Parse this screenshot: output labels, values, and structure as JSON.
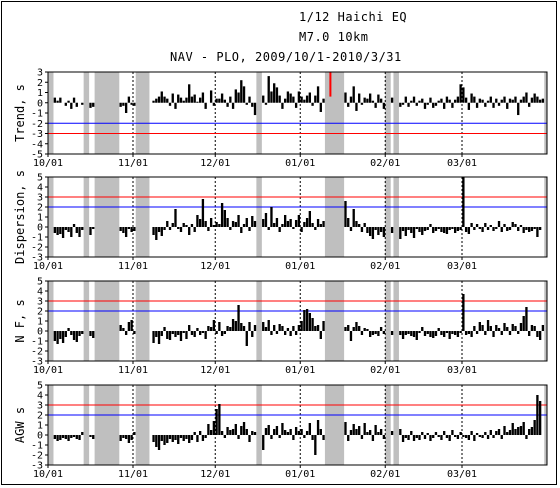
{
  "title_line1": "1/12 Haichi EQ",
  "title_line2": "M7.0 10km",
  "subtitle": "NAV - PLO, 2009/10/1-2010/3/31",
  "colors": {
    "bar": "#000000",
    "missing": "#bfbfbf",
    "red_line": "#ff0000",
    "blue_line": "#0000ff",
    "event": "#ff0000"
  },
  "chart_data": [
    {
      "type": "bar",
      "ylabel": "Trend,  s",
      "ylim": [
        -5,
        3
      ],
      "yticks": [
        3,
        2,
        1,
        0,
        -1,
        -2,
        -3,
        -4,
        -5
      ],
      "thresholds": [
        {
          "value": -3,
          "color": "red"
        },
        {
          "value": -2,
          "color": "blue"
        }
      ],
      "x_range": [
        0,
        182
      ],
      "x_ticks": [
        {
          "day": 0,
          "label": "10/01"
        },
        {
          "day": 31,
          "label": "11/01"
        },
        {
          "day": 61,
          "label": "12/01"
        },
        {
          "day": 92,
          "label": "01/01"
        },
        {
          "day": 123,
          "label": "02/01"
        },
        {
          "day": 151,
          "label": "03/01"
        }
      ],
      "missing_ranges": [
        [
          0,
          2
        ],
        [
          13,
          15
        ],
        [
          17,
          26
        ],
        [
          32,
          37
        ],
        [
          76,
          78
        ],
        [
          101,
          108
        ],
        [
          123,
          125
        ],
        [
          126,
          128
        ],
        [
          181,
          182
        ]
      ],
      "event_day": 103,
      "values": [
        0,
        0,
        0.5,
        0.2,
        0.5,
        0,
        -0.3,
        0.2,
        -0.6,
        0.5,
        -0.4,
        0,
        -0.2,
        0,
        0,
        -0.5,
        -0.4,
        0,
        0,
        0,
        0,
        0,
        0,
        0,
        0,
        0,
        -0.4,
        -0.3,
        -1,
        0.6,
        -0.2,
        -0.3,
        0,
        0,
        0,
        0,
        0,
        0,
        0.2,
        0.4,
        0.6,
        1.1,
        0.6,
        0.4,
        -0.3,
        0.9,
        -0.6,
        0.8,
        0.5,
        0.2,
        0.5,
        1.8,
        0.6,
        0.8,
        0.1,
        0.5,
        1,
        -0.6,
        0,
        1.2,
        -0.3,
        0.4,
        0.4,
        0.9,
        0.3,
        -0.4,
        0.6,
        -0.6,
        1.3,
        1,
        2.2,
        1.6,
        -0.2,
        0.6,
        -0.4,
        -1.2,
        0,
        0,
        0.7,
        -0.2,
        2.6,
        1.1,
        1.9,
        1.5,
        0.7,
        -0.6,
        0.4,
        1.1,
        0.9,
        0.6,
        -0.5,
        1.1,
        0.6,
        0.3,
        0.7,
        1,
        -0.3,
        0.7,
        1.6,
        -0.9,
        0.4,
        0,
        0,
        0,
        0,
        0,
        0,
        0,
        1,
        -0.4,
        0.6,
        1.6,
        -0.8,
        0.9,
        -0.2,
        0.5,
        0.4,
        0.9,
        0.2,
        -0.5,
        0.8,
        0.4,
        -0.6,
        0,
        0,
        0.5,
        0,
        0,
        -0.4,
        -0.2,
        0.6,
        -0.4,
        0.2,
        0.6,
        -0.3,
        0.2,
        0.4,
        -0.6,
        -0.2,
        0.5,
        -0.5,
        -0.3,
        0.2,
        0.4,
        -0.6,
        0.6,
        0.3,
        -0.5,
        0.3,
        0.6,
        1.8,
        1.5,
        0.5,
        -0.7,
        0.9,
        0.6,
        -0.5,
        0.4,
        0.3,
        -0.4,
        0.2,
        0.6,
        -0.5,
        0.4,
        -0.3,
        0.3,
        0.6,
        -0.6,
        0.4,
        0.3,
        0.6,
        -1.2,
        0.3,
        0.6,
        1,
        -0.4,
        0.5,
        0.9,
        0.6,
        0.3,
        0.4,
        0
      ]
    },
    {
      "type": "bar",
      "ylabel": "Dispersion,  s",
      "ylim": [
        -3,
        5
      ],
      "yticks": [
        5,
        4,
        3,
        2,
        1,
        0,
        -1,
        -2,
        -3
      ],
      "thresholds": [
        {
          "value": 3,
          "color": "red"
        },
        {
          "value": 2,
          "color": "blue"
        }
      ],
      "x_range": [
        0,
        182
      ],
      "x_ticks": [
        {
          "day": 0,
          "label": "10/01"
        },
        {
          "day": 31,
          "label": "11/01"
        },
        {
          "day": 61,
          "label": "12/01"
        },
        {
          "day": 92,
          "label": "01/01"
        },
        {
          "day": 123,
          "label": "02/01"
        },
        {
          "day": 151,
          "label": "03/01"
        }
      ],
      "missing_ranges": [
        [
          0,
          2
        ],
        [
          13,
          15
        ],
        [
          17,
          26
        ],
        [
          32,
          37
        ],
        [
          76,
          78
        ],
        [
          101,
          108
        ],
        [
          123,
          125
        ],
        [
          126,
          128
        ],
        [
          181,
          182
        ]
      ],
      "values": [
        0,
        0,
        -0.6,
        -0.8,
        -0.7,
        -1.1,
        -0.3,
        -0.5,
        -1,
        0.3,
        -0.6,
        -1,
        -0.3,
        0,
        0,
        -0.8,
        -0.2,
        0,
        0,
        0,
        0,
        0,
        0,
        0,
        0,
        0,
        -0.4,
        -0.6,
        -1,
        -0.2,
        -0.5,
        -0.4,
        0,
        0,
        0,
        0,
        0,
        0,
        -0.8,
        -1.3,
        -0.5,
        -0.9,
        -0.3,
        0.6,
        -0.3,
        0.4,
        1.8,
        -0.2,
        -0.5,
        0.4,
        0.2,
        -0.8,
        0.3,
        -0.5,
        1.2,
        0.8,
        2.8,
        0.6,
        -0.4,
        0.9,
        0.2,
        0.5,
        0.3,
        2.4,
        1.7,
        0.9,
        -0.3,
        0.6,
        0.5,
        1.2,
        -0.6,
        0.3,
        0.9,
        -0.4,
        1.1,
        0.6,
        0,
        0,
        0.8,
        1.4,
        -0.3,
        2,
        0.4,
        0.9,
        -0.5,
        0.3,
        1.2,
        0.6,
        0.8,
        -0.2,
        0.7,
        1.2,
        -0.5,
        0.5,
        0.9,
        1.6,
        0.4,
        -0.3,
        0.8,
        0.3,
        0.6,
        0,
        0,
        0,
        0,
        0,
        0,
        0,
        2.6,
        0.9,
        -0.4,
        1.8,
        0.6,
        0.3,
        -0.5,
        0.4,
        -0.6,
        -0.9,
        -1.2,
        -0.3,
        -0.8,
        -0.5,
        -1,
        0,
        0,
        -0.6,
        0,
        0,
        -1.2,
        -0.4,
        -0.9,
        -0.3,
        -0.6,
        -1.1,
        -0.2,
        -0.5,
        -0.8,
        -0.4,
        -0.3,
        0.3,
        -0.6,
        -0.4,
        -0.2,
        -0.5,
        -0.6,
        -0.7,
        -0.3,
        -0.2,
        -0.6,
        -0.4,
        -0.3,
        5,
        -0.5,
        -0.7,
        0.4,
        -0.3,
        0.3,
        -0.2,
        -0.5,
        0.4,
        -0.3,
        0.2,
        -0.4,
        -0.2,
        0.6,
        -0.5,
        0.3,
        -0.4,
        -0.3,
        0.5,
        0.3,
        -0.4,
        0.2,
        -0.6,
        -0.3,
        -0.5,
        -0.4,
        -0.2,
        -1,
        -0.3,
        0
      ]
    },
    {
      "type": "bar",
      "ylabel": "N F,  s",
      "ylim": [
        -3,
        5
      ],
      "yticks": [
        5,
        4,
        3,
        2,
        1,
        0,
        -1,
        -2,
        -3
      ],
      "thresholds": [
        {
          "value": 3,
          "color": "red"
        },
        {
          "value": 2,
          "color": "blue"
        }
      ],
      "x_range": [
        0,
        182
      ],
      "x_ticks": [
        {
          "day": 0,
          "label": "10/01"
        },
        {
          "day": 31,
          "label": "11/01"
        },
        {
          "day": 61,
          "label": "12/01"
        },
        {
          "day": 92,
          "label": "01/01"
        },
        {
          "day": 123,
          "label": "02/01"
        },
        {
          "day": 151,
          "label": "03/01"
        }
      ],
      "missing_ranges": [
        [
          0,
          2
        ],
        [
          13,
          15
        ],
        [
          17,
          26
        ],
        [
          32,
          37
        ],
        [
          76,
          78
        ],
        [
          101,
          108
        ],
        [
          123,
          125
        ],
        [
          126,
          128
        ],
        [
          181,
          182
        ]
      ],
      "values": [
        0,
        0,
        -1,
        -1.3,
        -0.8,
        -1.2,
        -0.6,
        0.3,
        -0.4,
        -0.9,
        -1.1,
        -0.5,
        -0.3,
        0,
        0,
        -0.5,
        -0.7,
        0,
        0,
        0,
        0,
        0,
        0,
        0,
        0,
        0,
        0.6,
        0.3,
        -0.4,
        0.9,
        1.1,
        -0.3,
        0,
        0,
        0,
        0,
        0,
        0,
        -1.2,
        -0.6,
        -1.3,
        -0.5,
        0.4,
        -0.8,
        -0.9,
        -0.3,
        -0.6,
        -0.4,
        -1,
        -0.2,
        -0.8,
        0.6,
        -0.4,
        -0.6,
        0.3,
        -0.4,
        -0.2,
        -0.8,
        0.5,
        0.4,
        1.1,
        -0.3,
        0.9,
        -0.5,
        -0.3,
        0.5,
        0.4,
        1.2,
        1,
        2.6,
        0.8,
        0.5,
        -1.5,
        0.9,
        -0.6,
        0.6,
        0,
        0,
        0.9,
        0.4,
        1.1,
        -0.4,
        0.6,
        -0.3,
        0.7,
        0.5,
        -0.4,
        0.3,
        -0.5,
        0.5,
        -0.4,
        0.6,
        1,
        2.1,
        2.2,
        1.8,
        1.3,
        0.5,
        0.6,
        -0.8,
        1,
        0,
        0,
        0,
        0,
        0,
        0,
        0,
        0.4,
        0.6,
        -1,
        0.4,
        0.9,
        0.5,
        -0.4,
        0.3,
        0.2,
        -0.6,
        -0.4,
        -0.3,
        -0.5,
        0.4,
        -0.3,
        0,
        0,
        -0.4,
        0,
        0,
        -0.4,
        -0.8,
        -0.4,
        -0.3,
        -0.5,
        -0.6,
        -0.9,
        -0.2,
        0.4,
        -0.5,
        -0.3,
        -0.6,
        -0.7,
        -0.5,
        0.3,
        -0.4,
        -0.6,
        -0.2,
        -0.8,
        -0.3,
        -0.4,
        -0.6,
        -0.2,
        3.7,
        -0.4,
        -0.3,
        -0.6,
        0.5,
        -0.3,
        0.9,
        0.6,
        -0.4,
        1.1,
        0.5,
        -0.6,
        0.6,
        0.3,
        -0.4,
        0.8,
        0.4,
        -0.4,
        0.7,
        0.5,
        -0.3,
        0.8,
        1.5,
        2.4,
        -0.5,
        0.6,
        0.5,
        -0.6,
        -0.9,
        0.6,
        0
      ]
    },
    {
      "type": "bar",
      "ylabel": "AGW  s",
      "ylim": [
        -3,
        5
      ],
      "yticks": [
        5,
        4,
        3,
        2,
        1,
        0,
        -1,
        -2,
        -3
      ],
      "thresholds": [
        {
          "value": 3,
          "color": "red"
        },
        {
          "value": 2,
          "color": "blue"
        }
      ],
      "x_range": [
        0,
        182
      ],
      "x_ticks": [
        {
          "day": 0,
          "label": "10/01"
        },
        {
          "day": 31,
          "label": "11/01"
        },
        {
          "day": 61,
          "label": "12/01"
        },
        {
          "day": 92,
          "label": "01/01"
        },
        {
          "day": 123,
          "label": "02/01"
        },
        {
          "day": 151,
          "label": "03/01"
        }
      ],
      "missing_ranges": [
        [
          0,
          2
        ],
        [
          13,
          15
        ],
        [
          17,
          26
        ],
        [
          32,
          37
        ],
        [
          76,
          78
        ],
        [
          101,
          108
        ],
        [
          123,
          125
        ],
        [
          126,
          128
        ],
        [
          181,
          182
        ]
      ],
      "values": [
        0,
        0,
        -0.4,
        -0.6,
        -0.5,
        -0.3,
        -0.4,
        -0.6,
        -0.3,
        -0.2,
        -0.4,
        -0.5,
        0.3,
        0,
        0,
        -0.2,
        -0.4,
        0,
        0,
        0,
        0,
        0,
        0,
        0,
        0,
        0,
        -0.6,
        -0.3,
        -0.4,
        -0.8,
        -0.5,
        0.3,
        0,
        0,
        0,
        0,
        0,
        0,
        -0.7,
        -1.2,
        -1.5,
        -0.6,
        -1,
        -0.8,
        -0.4,
        -0.7,
        -0.5,
        -0.9,
        -0.3,
        -0.6,
        -0.4,
        -0.8,
        -0.5,
        0.3,
        -0.7,
        0.4,
        -0.6,
        -0.3,
        1.1,
        0.5,
        1.4,
        2.6,
        3.1,
        0.4,
        -0.3,
        0.8,
        0.5,
        0.6,
        1.1,
        -0.4,
        0.9,
        1.3,
        0.6,
        -0.7,
        0.4,
        0.3,
        0,
        0,
        -1.5,
        0.7,
        1,
        -0.4,
        0.6,
        0.9,
        -0.3,
        1.2,
        0.5,
        0.3,
        0.6,
        -0.5,
        0.8,
        0.4,
        0.6,
        -0.3,
        0.4,
        1.2,
        -0.5,
        -2,
        1.5,
        0.6,
        -0.5,
        0,
        0,
        0,
        0,
        0,
        0,
        0,
        1.3,
        -0.6,
        0.5,
        1.1,
        0.6,
        0.9,
        -0.4,
        1.2,
        0.3,
        0.5,
        -0.6,
        1,
        0.3,
        0.6,
        -0.4,
        0,
        0,
        0.4,
        0,
        0,
        0.6,
        -0.7,
        -0.3,
        -0.5,
        0.4,
        -0.6,
        -0.3,
        -0.5,
        0.3,
        -0.4,
        0.2,
        -0.6,
        -0.3,
        0.3,
        -0.2,
        -0.5,
        0.4,
        -0.3,
        -0.6,
        0.5,
        -0.2,
        -0.4,
        0.3,
        -0.2,
        -0.3,
        -0.5,
        0.4,
        -0.6,
        0.2,
        -0.2,
        -0.3,
        0.3,
        -0.4,
        0.5,
        -0.3,
        0.4,
        0.6,
        -0.4,
        0.9,
        0.3,
        0.5,
        1.2,
        0.6,
        0.8,
        0.9,
        1.3,
        -0.4,
        0.6,
        0.8,
        1.5,
        4,
        3.4,
        0
      ]
    }
  ]
}
